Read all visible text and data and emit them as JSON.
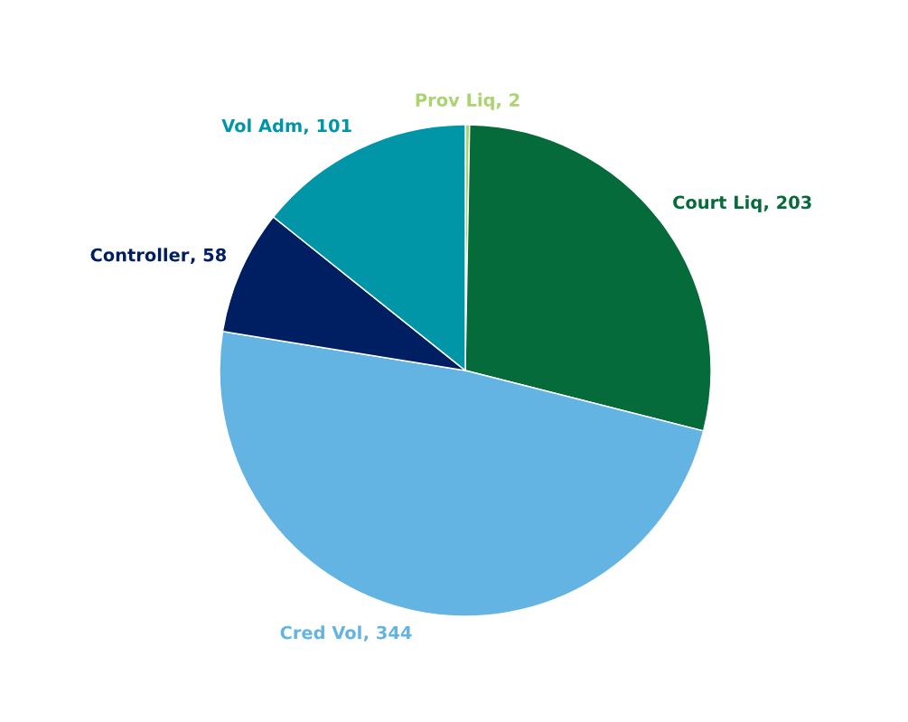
{
  "chart_data": {
    "type": "pie",
    "categories": [
      "Prov Liq",
      "Court Liq",
      "Cred Vol",
      "Controller",
      "Vol Adm"
    ],
    "values": [
      2,
      203,
      344,
      58,
      101
    ],
    "colors": [
      "#a9d46f",
      "#066b3a",
      "#63b3e3",
      "#001f63",
      "#0096a8"
    ],
    "value_labels": [
      ", 2",
      ", 203",
      ", 344",
      ", 58",
      ", 101"
    ]
  }
}
